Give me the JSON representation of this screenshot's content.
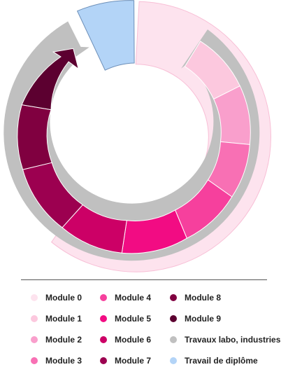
{
  "legend": {
    "items": [
      {
        "label": "Module 0",
        "color": "#fde3ee"
      },
      {
        "label": "Module 1",
        "color": "#fcc8de"
      },
      {
        "label": "Module 2",
        "color": "#f99fcc"
      },
      {
        "label": "Module 3",
        "color": "#f870b4"
      },
      {
        "label": "Module 4",
        "color": "#f6409d"
      },
      {
        "label": "Module 5",
        "color": "#f20c83"
      },
      {
        "label": "Module 6",
        "color": "#cc0066"
      },
      {
        "label": "Module 7",
        "color": "#9c0050"
      },
      {
        "label": "Module 8",
        "color": "#800040"
      },
      {
        "label": "Module 9",
        "color": "#5c0030"
      },
      {
        "label": "Travaux labo, industries",
        "color": "#c0c0c0"
      },
      {
        "label": "Travail de diplôme",
        "color": "#b3d4f7"
      }
    ]
  }
}
